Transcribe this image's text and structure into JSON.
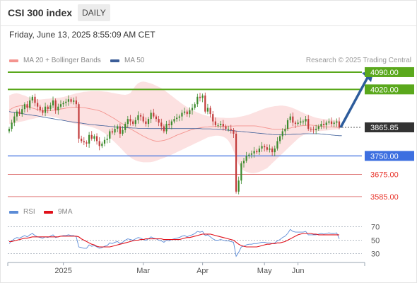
{
  "header": {
    "title": "CSI 300 index",
    "timeframe": "DAILY"
  },
  "date_text": "Friday, June 13, 2025 8:55:09 AM CET",
  "legend": {
    "ma20": {
      "label": "MA 20 + Bollinger Bands",
      "color": "#f4948f"
    },
    "ma50": {
      "label": "MA 50",
      "color": "#3b5d98"
    }
  },
  "credit": "Research © 2025 Trading Central",
  "rsi_legend": {
    "rsi": {
      "label": "RSI",
      "color": "#5b8bd6"
    },
    "ma9": {
      "label": "9MA",
      "color": "#e0101a"
    }
  },
  "colors": {
    "resistance": "#5aa81c",
    "pivot": "#3d6fe0",
    "support": "#e07a7a",
    "last_price": "#333333",
    "arrow": "#2d5c9c",
    "bull_candle": "#3a8a2c",
    "bear_candle": "#c23b3b",
    "bollinger_fill": "#fbdcdc"
  },
  "levels": {
    "r2": {
      "value": 4090.0,
      "label": "4090.00"
    },
    "r1": {
      "value": 4020.0,
      "label": "4020.00"
    },
    "last": {
      "value": 3865.85,
      "label": "3865.85"
    },
    "pivot": {
      "value": 3750.0,
      "label": "3750.00"
    },
    "s1": {
      "value": 3675.0,
      "label": "3675.00"
    },
    "s2": {
      "value": 3585.0,
      "label": "3585.00"
    }
  },
  "chart_data": [
    {
      "type": "candlestick",
      "title": "CSI 300 index",
      "x_labels": [
        "2025",
        "Mar",
        "Apr",
        "May",
        "Jun"
      ],
      "ylim": [
        3550,
        4110
      ],
      "series": [
        {
          "name": "MA 20",
          "values": [
            3935,
            3942,
            3948,
            3951,
            3953,
            3954,
            3953,
            3951,
            3948,
            3944,
            3941,
            3938,
            3936,
            3934,
            3933,
            3933,
            3934,
            3935,
            3936,
            3938,
            3940,
            3942,
            3944,
            3946,
            3947,
            3948,
            3948,
            3948,
            3947,
            3946,
            3944,
            3942,
            3940,
            3938,
            3936,
            3933,
            3929,
            3924,
            3918,
            3912,
            3906,
            3900,
            3893,
            3886,
            3880,
            3873,
            3866,
            3860,
            3854,
            3848,
            3842,
            3836,
            3830,
            3825,
            3820,
            3816,
            3812,
            3810,
            3810,
            3811,
            3813,
            3816,
            3820,
            3824,
            3829,
            3834,
            3838,
            3842,
            3846,
            3850,
            3854,
            3857,
            3860,
            3862,
            3864,
            3866,
            3867,
            3868,
            3869,
            3869,
            3870,
            3870,
            3870,
            3870,
            3871,
            3871,
            3871,
            3871,
            3872,
            3872,
            3872,
            3872,
            3872,
            3872,
            3872,
            3872,
            3871,
            3869,
            3867,
            3865,
            3863,
            3861,
            3859,
            3858,
            3858,
            3858,
            3858,
            3859,
            3861,
            3863,
            3866,
            3868,
            3870,
            3872,
            3873,
            3874,
            3875,
            3875,
            3874,
            3873,
            3871,
            3870,
            3869,
            3868,
            3867,
            3867,
            3867,
            3866,
            3866
          ]
        },
        {
          "name": "MA 50",
          "values": [
            3930,
            3928,
            3927,
            3925,
            3924,
            3922,
            3920,
            3918,
            3917,
            3915,
            3914,
            3912,
            3910,
            3908,
            3906,
            3904,
            3903,
            3901,
            3899,
            3897,
            3896,
            3894,
            3892,
            3890,
            3889,
            3887,
            3886,
            3884,
            3883,
            3881,
            3880,
            3878,
            3877,
            3876,
            3875,
            3874,
            3873,
            3872,
            3871,
            3870,
            3869,
            3868,
            3867,
            3866,
            3865,
            3865,
            3864,
            3864,
            3863,
            3863,
            3862,
            3862,
            3862,
            3862,
            3861,
            3861,
            3861,
            3861,
            3861,
            3861,
            3861,
            3861,
            3861,
            3861,
            3861,
            3861,
            3861,
            3861,
            3861,
            3861,
            3861,
            3861,
            3861,
            3861,
            3861,
            3860,
            3860,
            3860,
            3860,
            3859,
            3859,
            3858,
            3857,
            3856,
            3855,
            3854,
            3853,
            3852,
            3851,
            3850,
            3849,
            3848,
            3847,
            3846,
            3845,
            3844,
            3843,
            3842,
            3841,
            3840,
            3839,
            3838,
            3837,
            3836,
            3836,
            3836,
            3836,
            3836,
            3837,
            3837,
            3838,
            3838,
            3839,
            3839,
            3840,
            3840,
            3840,
            3840,
            3840,
            3840,
            3840,
            3839,
            3838,
            3837,
            3836,
            3835,
            3834,
            3833,
            3832,
            3832
          ]
        },
        {
          "name": "Bollinger upper",
          "values": [
            3995,
            4000,
            4003,
            4004,
            4002,
            3998,
            3995,
            3990,
            3986,
            3982,
            3980,
            3979,
            3979,
            3980,
            3981,
            3982,
            3983,
            3984,
            3985,
            3986,
            3987,
            3989,
            3992,
            3995,
            3998,
            4001,
            4004,
            4006,
            4008,
            4010,
            4011,
            4012,
            4013,
            4013,
            4013,
            4013,
            4012,
            4011,
            4010,
            4008,
            4006,
            4004,
            4002,
            4000,
            3999,
            3998,
            4000,
            4005,
            4020,
            4035,
            4045,
            4050,
            4052,
            4050,
            4047,
            4044,
            4040,
            4035,
            4030,
            4025,
            4018,
            4010,
            4002,
            3994,
            3986,
            3978,
            3970,
            3962,
            3955,
            3948,
            3942,
            3936,
            3931,
            3926,
            3922,
            3918,
            3915,
            3912,
            3910,
            3908,
            3907,
            3906,
            3905,
            3905,
            3904,
            3904,
            3904,
            3905,
            3906,
            3908,
            3910,
            3912,
            3915,
            3918,
            3922,
            3926,
            3930,
            3934,
            3938,
            3942,
            3945,
            3948,
            3950,
            3952,
            3953,
            3954,
            3954,
            3953,
            3951,
            3948,
            3944,
            3940,
            3935,
            3930,
            3925,
            3920,
            3916,
            3912,
            3908,
            3905,
            3903,
            3901,
            3900,
            3899,
            3898,
            3897,
            3896,
            3896,
            3895
          ]
        },
        {
          "name": "Bollinger lower",
          "values": [
            3880,
            3880,
            3882,
            3885,
            3888,
            3890,
            3892,
            3895,
            3898,
            3900,
            3902,
            3905,
            3908,
            3910,
            3911,
            3911,
            3910,
            3908,
            3906,
            3903,
            3900,
            3896,
            3892,
            3888,
            3885,
            3882,
            3880,
            3878,
            3876,
            3874,
            3872,
            3870,
            3867,
            3864,
            3860,
            3855,
            3849,
            3842,
            3834,
            3825,
            3815,
            3805,
            3795,
            3784,
            3773,
            3762,
            3752,
            3744,
            3737,
            3732,
            3728,
            3726,
            3724,
            3724,
            3724,
            3725,
            3727,
            3730,
            3734,
            3738,
            3742,
            3746,
            3750,
            3755,
            3760,
            3765,
            3770,
            3775,
            3780,
            3785,
            3790,
            3795,
            3800,
            3805,
            3810,
            3815,
            3820,
            3825,
            3828,
            3830,
            3832,
            3832,
            3831,
            3828,
            3822,
            3812,
            3795,
            3770,
            3740,
            3715,
            3700,
            3690,
            3685,
            3682,
            3680,
            3680,
            3682,
            3685,
            3690,
            3695,
            3700,
            3710,
            3720,
            3730,
            3740,
            3750,
            3760,
            3770,
            3780,
            3790,
            3800,
            3810,
            3820,
            3828,
            3834,
            3838,
            3842,
            3845,
            3847,
            3849,
            3850,
            3851,
            3852,
            3853,
            3854,
            3855,
            3856,
            3857,
            3858
          ]
        }
      ],
      "candles": {
        "close": [
          3860,
          3885,
          3910,
          3930,
          3920,
          3940,
          3960,
          3945,
          3975,
          3990,
          3965,
          3950,
          3935,
          3925,
          3950,
          3940,
          3955,
          3975,
          3935,
          3950,
          3960,
          3965,
          3970,
          3980,
          3970,
          3975,
          3960,
          3820,
          3810,
          3805,
          3800,
          3835,
          3820,
          3830,
          3810,
          3790,
          3800,
          3815,
          3820,
          3850,
          3845,
          3860,
          3870,
          3840,
          3855,
          3880,
          3900,
          3890,
          3880,
          3895,
          3915,
          3910,
          3890,
          3880,
          3900,
          3925,
          3910,
          3900,
          3885,
          3870,
          3850,
          3880,
          3875,
          3890,
          3900,
          3905,
          3910,
          3925,
          3930,
          3920,
          3935,
          3945,
          3960,
          3990,
          3985,
          3995,
          3930,
          3945,
          3920,
          3890,
          3875,
          3875,
          3880,
          3870,
          3860,
          3860,
          3855,
          3840,
          3605,
          3650,
          3720,
          3730,
          3750,
          3755,
          3760,
          3770,
          3765,
          3780,
          3790,
          3785,
          3775,
          3780,
          3765,
          3780,
          3810,
          3830,
          3850,
          3860,
          3895,
          3910,
          3885,
          3880,
          3885,
          3890,
          3890,
          3900,
          3860,
          3858,
          3855,
          3860,
          3870,
          3880,
          3875,
          3885,
          3890,
          3880,
          3885,
          3890,
          3866
        ]
      },
      "x_range": [
        0,
        128
      ]
    },
    {
      "type": "line",
      "title": "RSI",
      "ylim": [
        20,
        80
      ],
      "yticks": [
        30,
        50,
        70
      ],
      "series": [
        {
          "name": "RSI",
          "values": [
            45,
            49,
            52,
            54,
            53,
            55,
            57,
            55,
            58,
            60,
            57,
            55,
            54,
            53,
            55,
            54,
            56,
            58,
            54,
            55,
            56,
            57,
            57,
            58,
            57,
            57,
            55,
            40,
            39,
            38,
            38,
            43,
            41,
            42,
            40,
            38,
            39,
            41,
            42,
            46,
            45,
            47,
            48,
            45,
            47,
            50,
            52,
            51,
            50,
            52,
            54,
            53,
            51,
            50,
            52,
            55,
            53,
            52,
            50,
            49,
            47,
            50,
            49,
            51,
            52,
            53,
            54,
            56,
            57,
            55,
            57,
            58,
            60,
            63,
            62,
            63,
            57,
            58,
            55,
            52,
            50,
            50,
            51,
            50,
            49,
            49,
            48,
            47,
            26,
            32,
            40,
            41,
            43,
            44,
            44,
            45,
            45,
            46,
            47,
            47,
            46,
            46,
            45,
            46,
            49,
            51,
            54,
            56,
            60,
            66,
            63,
            62,
            62,
            62,
            62,
            63,
            58,
            58,
            58,
            58,
            59,
            60,
            59,
            60,
            61,
            60,
            60,
            61,
            52
          ]
        },
        {
          "name": "9MA",
          "values": [
            48,
            48,
            49,
            50,
            51,
            52,
            53,
            53,
            54,
            55,
            55,
            55,
            55,
            55,
            55,
            55,
            55,
            55,
            55,
            55,
            56,
            56,
            56,
            56,
            56,
            56,
            56,
            55,
            52,
            50,
            48,
            46,
            44,
            43,
            41,
            40,
            40,
            40,
            40,
            40,
            41,
            42,
            43,
            44,
            45,
            46,
            47,
            48,
            49,
            50,
            50,
            51,
            51,
            52,
            52,
            52,
            52,
            52,
            52,
            52,
            51,
            51,
            51,
            51,
            51,
            51,
            51,
            52,
            53,
            54,
            54,
            55,
            56,
            57,
            58,
            59,
            59,
            59,
            59,
            58,
            57,
            56,
            55,
            54,
            53,
            52,
            51,
            50,
            47,
            44,
            42,
            41,
            40,
            40,
            40,
            40,
            40,
            41,
            42,
            43,
            44,
            44,
            45,
            45,
            46,
            46,
            47,
            48,
            50,
            52,
            54,
            56,
            58,
            59,
            60,
            60,
            60,
            60,
            59,
            59,
            58,
            58,
            58,
            58,
            58,
            58,
            58,
            58,
            58
          ]
        }
      ]
    }
  ]
}
